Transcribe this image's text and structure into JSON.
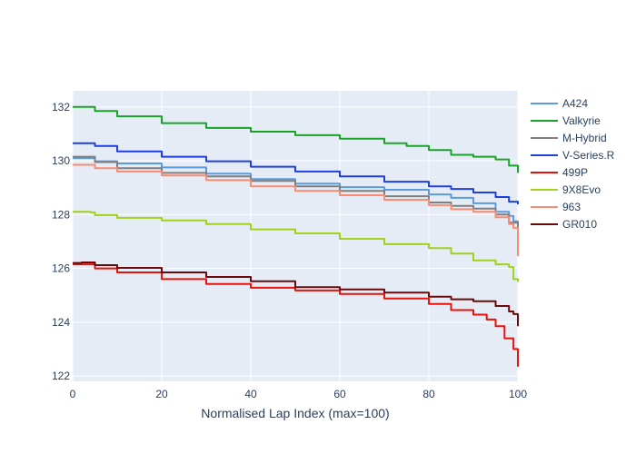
{
  "chart_data": {
    "type": "line",
    "title": "",
    "xlabel": "Normalised Lap Index (max=100)",
    "ylabel": "",
    "xlim": [
      0,
      100
    ],
    "ylim": [
      121.8,
      132.6
    ],
    "xticks": [
      0,
      20,
      40,
      60,
      80,
      100
    ],
    "yticks": [
      122,
      124,
      126,
      128,
      130,
      132
    ],
    "grid": true,
    "legend_position": "right",
    "plot_bg": "#e5ecf6",
    "series": [
      {
        "name": "A424",
        "color": "#5a9be0",
        "x": [
          0,
          5,
          10,
          20,
          30,
          40,
          50,
          60,
          70,
          80,
          85,
          90,
          95,
          98,
          99,
          100
        ],
        "y": [
          130.1,
          129.98,
          129.9,
          129.75,
          129.52,
          129.32,
          129.15,
          129.02,
          128.92,
          128.75,
          128.62,
          128.42,
          128.1,
          127.95,
          127.75,
          127.45
        ]
      },
      {
        "name": "Valkyrie",
        "color": "#1aa32a",
        "x": [
          0,
          5,
          10,
          20,
          30,
          40,
          50,
          60,
          70,
          75,
          80,
          85,
          90,
          95,
          98,
          100
        ],
        "y": [
          132.0,
          131.85,
          131.65,
          131.4,
          131.22,
          131.08,
          130.95,
          130.82,
          130.65,
          130.55,
          130.4,
          130.22,
          130.15,
          130.05,
          129.82,
          129.55
        ]
      },
      {
        "name": "M-Hybrid",
        "color": "#7f7f7f",
        "x": [
          0,
          5,
          10,
          20,
          30,
          40,
          50,
          60,
          70,
          80,
          85,
          90,
          95,
          98,
          100
        ],
        "y": [
          130.15,
          129.95,
          129.72,
          129.55,
          129.42,
          129.25,
          129.05,
          128.88,
          128.68,
          128.45,
          128.32,
          128.22,
          128.0,
          127.7,
          127.3
        ]
      },
      {
        "name": "V-Series.R",
        "color": "#1f3fe0",
        "x": [
          0,
          5,
          10,
          20,
          30,
          40,
          50,
          60,
          70,
          80,
          85,
          90,
          95,
          98,
          100
        ],
        "y": [
          130.65,
          130.55,
          130.35,
          130.15,
          129.98,
          129.78,
          129.6,
          129.42,
          129.22,
          129.05,
          128.95,
          128.82,
          128.65,
          128.48,
          128.38
        ]
      },
      {
        "name": "499P",
        "color": "#e8120a",
        "x": [
          0,
          5,
          10,
          20,
          30,
          40,
          50,
          60,
          70,
          80,
          85,
          90,
          93,
          95,
          97,
          99,
          100
        ],
        "y": [
          126.15,
          126.0,
          125.85,
          125.6,
          125.42,
          125.28,
          125.18,
          125.05,
          124.88,
          124.68,
          124.45,
          124.28,
          124.1,
          123.85,
          123.4,
          123.0,
          122.35
        ]
      },
      {
        "name": "9X8Evo",
        "color": "#a2d11a",
        "x": [
          0,
          4,
          5,
          10,
          20,
          30,
          40,
          50,
          60,
          70,
          80,
          85,
          90,
          95,
          98,
          99,
          100
        ],
        "y": [
          128.1,
          128.08,
          127.98,
          127.88,
          127.78,
          127.65,
          127.45,
          127.3,
          127.1,
          126.9,
          126.75,
          126.55,
          126.3,
          126.15,
          126.05,
          125.6,
          125.5
        ]
      },
      {
        "name": "963",
        "color": "#f98b72",
        "x": [
          0,
          5,
          10,
          20,
          30,
          40,
          50,
          60,
          70,
          80,
          85,
          90,
          95,
          98,
          99,
          100
        ],
        "y": [
          129.85,
          129.72,
          129.6,
          129.45,
          129.28,
          129.05,
          128.88,
          128.72,
          128.55,
          128.35,
          128.2,
          128.1,
          127.9,
          127.65,
          127.5,
          126.45
        ]
      },
      {
        "name": "GR010",
        "color": "#6a0a0a",
        "x": [
          0,
          2,
          5,
          10,
          20,
          30,
          40,
          50,
          60,
          70,
          80,
          85,
          90,
          95,
          98,
          99,
          100
        ],
        "y": [
          126.2,
          126.22,
          126.12,
          126.02,
          125.85,
          125.68,
          125.52,
          125.3,
          125.22,
          125.1,
          124.95,
          124.85,
          124.78,
          124.6,
          124.4,
          124.3,
          123.85
        ]
      }
    ]
  }
}
